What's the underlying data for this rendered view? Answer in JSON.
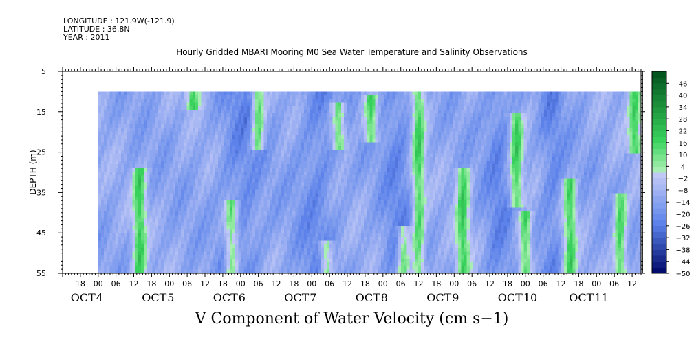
{
  "header": {
    "longitude": "LONGITUDE : 121.9W(-121.9)",
    "latitude": "LATITUDE : 36.8N",
    "year": "YEAR : 2011"
  },
  "chart_data": {
    "type": "heatmap",
    "title": "Hourly Gridded MBARI Mooring M0 Sea Water Temperature and Salinity Observations",
    "xlabel": "V Component of Water Velocity (cm s−1)",
    "ylabel": "DEPTH (m)",
    "y_ticks": [
      5,
      15,
      25,
      35,
      45,
      55
    ],
    "ylim": [
      5,
      55
    ],
    "y_inverted": true,
    "x_start": "2011-10-03 12:00",
    "x_end": "2011-10-11 15:00",
    "x_tick_hours": [
      "18",
      "00",
      "06",
      "12",
      "18",
      "00",
      "06",
      "12",
      "18",
      "00",
      "06",
      "12",
      "18",
      "00",
      "06",
      "12",
      "18",
      "00",
      "06",
      "12",
      "18",
      "00",
      "06",
      "12",
      "18",
      "00",
      "06",
      "12",
      "18",
      "00",
      "06",
      "12"
    ],
    "date_labels": [
      "OCT 4",
      "OCT 5",
      "OCT 6",
      "OCT 7",
      "OCT 8",
      "OCT 9",
      "OCT 10",
      "OCT 11"
    ],
    "data_depth_range": [
      10,
      55
    ],
    "data_time_range": [
      "2011-10-04 00:00",
      "2011-10-11 15:00"
    ],
    "colorbar": {
      "labels": [
        46,
        40,
        34,
        28,
        22,
        16,
        10,
        4,
        -2,
        -8,
        -14,
        -20,
        -26,
        -32,
        -38,
        -44,
        -50
      ],
      "range": [
        -50,
        52
      ],
      "step": 3,
      "colors": {
        "high": "#004d1a",
        "mid_positive": "#39d35c",
        "near_zero_positive": "#b0f0b8",
        "near_zero_negative": "#c4ccf7",
        "mid_negative": "#5b82ea",
        "low": "#000a6b"
      }
    },
    "grid": false,
    "legend": "colorbar-right",
    "green_patches": [
      {
        "time": "2011-10-04 14:00",
        "depth_top": 30,
        "depth_bottom": 55
      },
      {
        "time": "2011-10-05 21:00",
        "depth_top": 38,
        "depth_bottom": 55
      },
      {
        "time": "2011-10-05 08:00",
        "depth_top": 10,
        "depth_bottom": 14
      },
      {
        "time": "2011-10-06 06:00",
        "depth_top": 10,
        "depth_bottom": 24
      },
      {
        "time": "2011-10-07 05:00",
        "depth_top": 48,
        "depth_bottom": 55
      },
      {
        "time": "2011-10-07 09:00",
        "depth_top": 13,
        "depth_bottom": 24
      },
      {
        "time": "2011-10-07 20:00",
        "depth_top": 12,
        "depth_bottom": 22
      },
      {
        "time": "2011-10-08 07:00",
        "depth_top": 44,
        "depth_bottom": 55
      },
      {
        "time": "2011-10-08 12:00",
        "depth_top": 10,
        "depth_bottom": 55
      },
      {
        "time": "2011-10-09 03:00",
        "depth_top": 30,
        "depth_bottom": 55
      },
      {
        "time": "2011-10-09 21:00",
        "depth_top": 16,
        "depth_bottom": 38
      },
      {
        "time": "2011-10-10 00:00",
        "depth_top": 40,
        "depth_bottom": 55
      },
      {
        "time": "2011-10-10 15:00",
        "depth_top": 32,
        "depth_bottom": 55
      },
      {
        "time": "2011-10-11 08:00",
        "depth_top": 36,
        "depth_bottom": 55
      },
      {
        "time": "2011-10-11 13:00",
        "depth_top": 10,
        "depth_bottom": 25
      }
    ]
  }
}
